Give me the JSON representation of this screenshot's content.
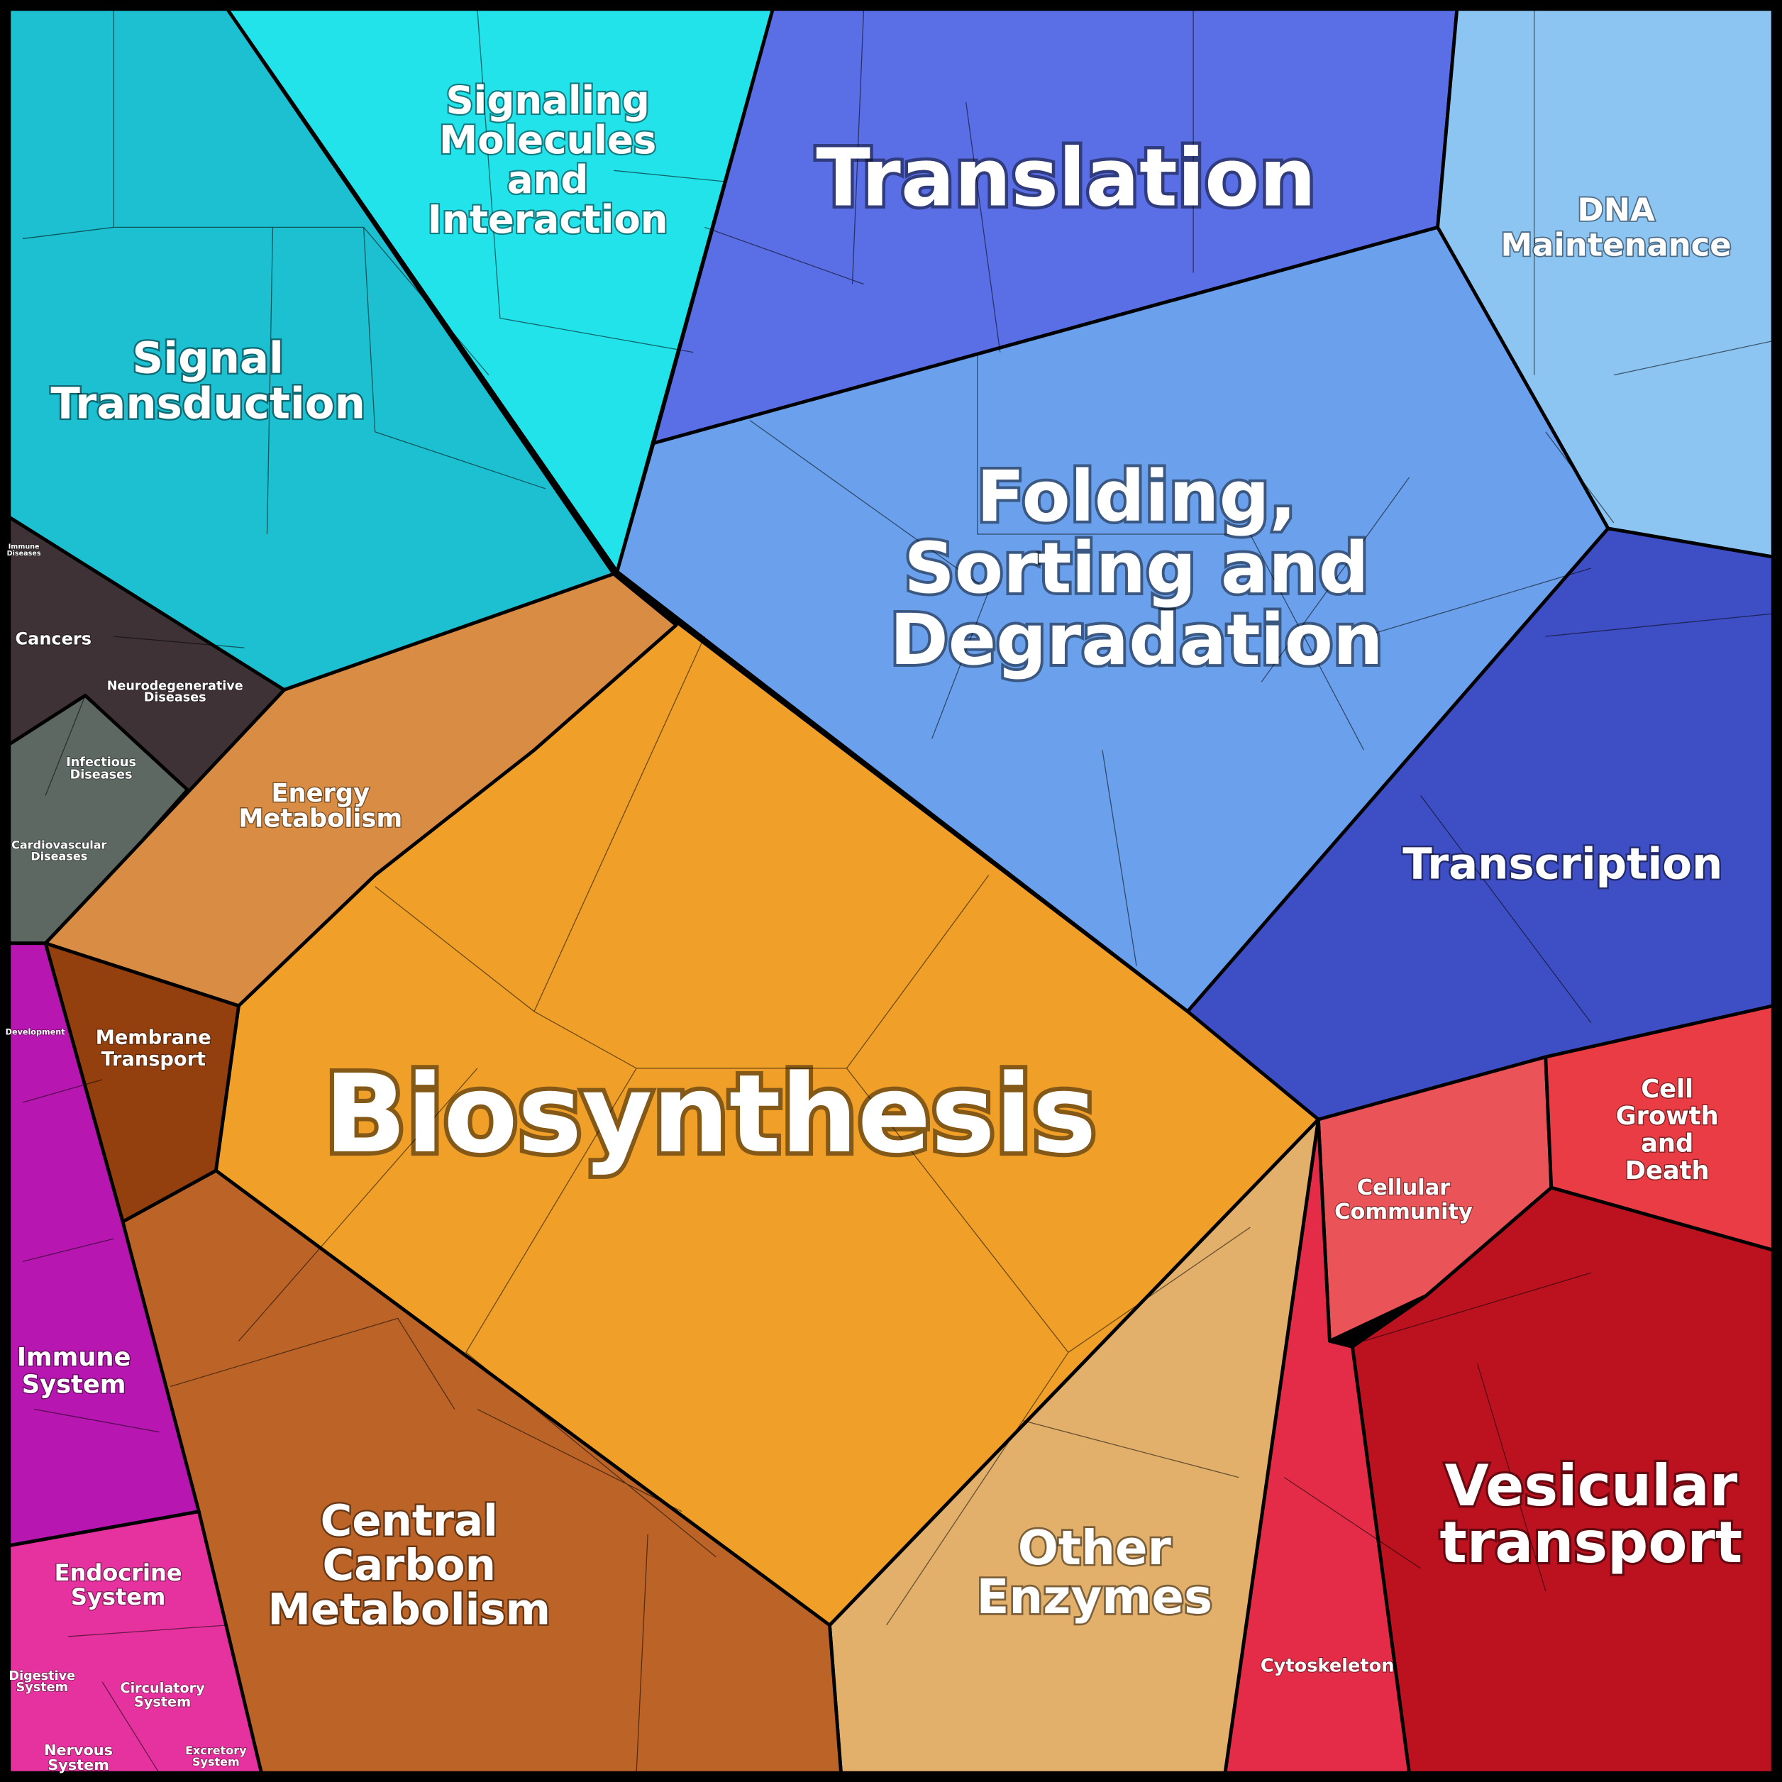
{
  "regions": [
    {
      "lines": [
        "Signal",
        "Transduction"
      ]
    },
    {
      "lines": [
        "Signaling",
        "Molecules",
        "and",
        "Interaction"
      ]
    },
    {
      "lines": [
        "Translation"
      ]
    },
    {
      "lines": [
        "DNA",
        "Maintenance"
      ]
    },
    {
      "lines": [
        "Folding,",
        "Sorting and",
        "Degradation"
      ]
    },
    {
      "lines": [
        "Transcription"
      ]
    },
    {
      "lines": [
        "Cell",
        "Growth",
        "and",
        "Death"
      ]
    },
    {
      "lines": [
        "Cellular",
        "Community"
      ]
    },
    {
      "lines": [
        "Vesicular",
        "transport"
      ]
    },
    {
      "lines": [
        "Cytoskeleton"
      ]
    },
    {
      "lines": [
        "Other",
        "Enzymes"
      ]
    },
    {
      "lines": [
        "Biosynthesis"
      ]
    },
    {
      "lines": [
        "Central",
        "Carbon",
        "Metabolism"
      ]
    },
    {
      "lines": [
        "Energy",
        "Metabolism"
      ]
    },
    {
      "lines": [
        "Membrane",
        "Transport"
      ]
    },
    {
      "lines": [
        "Immune",
        "Diseases"
      ]
    },
    {
      "lines": [
        "Cancers"
      ]
    },
    {
      "lines": [
        "Neurodegenerative",
        "Diseases"
      ]
    },
    {
      "lines": [
        "Infectious",
        "Diseases"
      ]
    },
    {
      "lines": [
        "Cardiovascular",
        "Diseases"
      ]
    },
    {
      "lines": [
        "Development"
      ]
    },
    {
      "lines": [
        "Immune",
        "System"
      ]
    },
    {
      "lines": [
        "Endocrine",
        "System"
      ]
    },
    {
      "lines": [
        "Digestive",
        "System"
      ]
    },
    {
      "lines": [
        "Circulatory",
        "System"
      ]
    },
    {
      "lines": [
        "Nervous",
        "System"
      ]
    },
    {
      "lines": [
        "Excretory",
        "System"
      ]
    }
  ]
}
